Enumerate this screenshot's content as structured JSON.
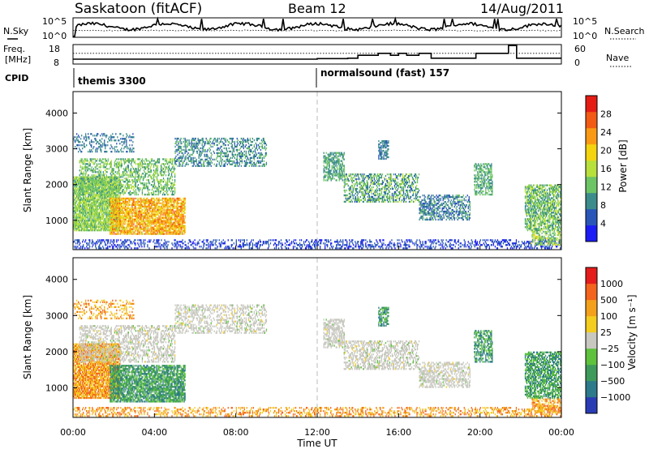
{
  "header": {
    "title": "Saskatoon (fitACF)",
    "beam": "Beam 12",
    "date": "14/Aug/2011"
  },
  "top_panels": {
    "nsky_label": "N.Sky",
    "nsky_ticks": [
      "10^5",
      "10^0"
    ],
    "nsearch_label": "N.Search",
    "nsearch_ticks": [
      "10^5",
      "10^0"
    ],
    "freq_label_1": "Freq.",
    "freq_label_2": "[MHz]",
    "freq_ticks": [
      "18",
      "8"
    ],
    "nave_label": "Nave",
    "nave_ticks": [
      "60",
      "0"
    ],
    "cpid_label": "CPID",
    "modes": [
      {
        "name": "themis 3300",
        "start_hour": 0
      },
      {
        "name": "normalsound (fast) 157",
        "start_hour": 12
      }
    ]
  },
  "chart_data": [
    {
      "type": "heatmap",
      "name": "power",
      "ylabel": "Slant Range [km]",
      "xlim": [
        0,
        24
      ],
      "ylim": [
        180,
        4600
      ],
      "yticks": [
        "1000",
        "2000",
        "3000",
        "4000"
      ],
      "colorbar": {
        "label": "Power [dB]",
        "ticks": [
          "28",
          "24",
          "20",
          "16",
          "12",
          "8",
          "4"
        ],
        "colors": [
          "#1c1cf5",
          "#2a56b8",
          "#3d8c8c",
          "#6dc464",
          "#b8e03a",
          "#f3d40f",
          "#fa9a14",
          "#f35a14",
          "#e41c14"
        ]
      }
    },
    {
      "type": "heatmap",
      "name": "velocity",
      "ylabel": "Slant Range [km]",
      "xlabel": "Time UT",
      "xlim": [
        0,
        24
      ],
      "ylim": [
        180,
        4600
      ],
      "yticks": [
        "1000",
        "2000",
        "3000",
        "4000"
      ],
      "xticks": [
        "00:00",
        "04:00",
        "08:00",
        "12:00",
        "16:00",
        "20:00",
        "00:00"
      ],
      "colorbar": {
        "label": "Velocity [m s⁻¹]",
        "ticks": [
          "1000",
          "500",
          "100",
          "25",
          "−25",
          "−100",
          "−500",
          "−1000"
        ],
        "colors": [
          "#2a3cb4",
          "#2d7a8a",
          "#3e9a5a",
          "#5ec23c",
          "#c8c8c0",
          "#f3cd20",
          "#f3a01c",
          "#f3641c",
          "#e41c1c"
        ]
      }
    }
  ]
}
